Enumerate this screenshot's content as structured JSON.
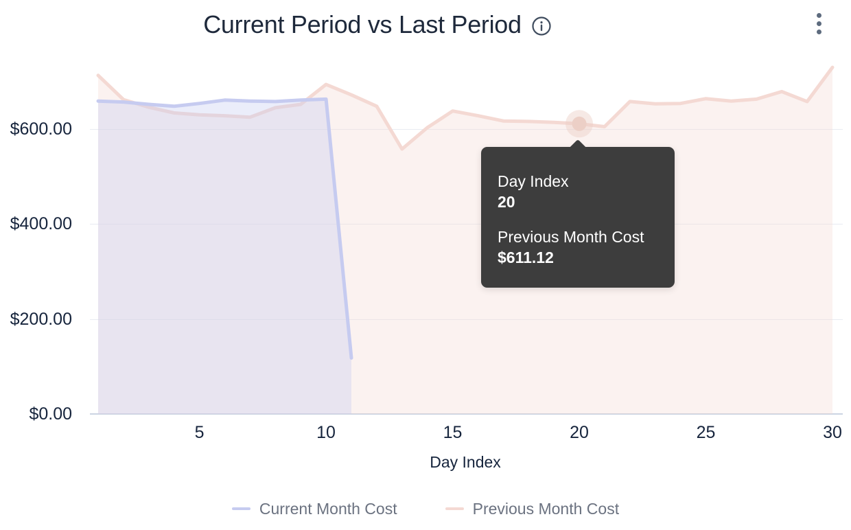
{
  "header": {
    "title": "Current Period vs Last Period",
    "info_icon": "info-circle",
    "menu_icon": "kebab-menu"
  },
  "chart_data": {
    "type": "area",
    "title": "Current Period vs Last Period",
    "xlabel": "Day Index",
    "ylabel": "",
    "x": [
      1,
      2,
      3,
      4,
      5,
      6,
      7,
      8,
      9,
      10,
      11,
      12,
      13,
      14,
      15,
      16,
      17,
      18,
      19,
      20,
      21,
      22,
      23,
      24,
      25,
      26,
      27,
      28,
      29,
      30
    ],
    "series": [
      {
        "name": "Current Month Cost",
        "color": "#c6cbf0",
        "values": [
          659,
          657,
          652,
          648,
          654,
          661,
          659,
          658,
          661,
          663,
          118
        ]
      },
      {
        "name": "Previous Month Cost",
        "color": "#f4d9d3",
        "values": [
          713,
          662,
          646,
          634,
          630,
          628,
          625,
          645,
          652,
          694,
          672,
          648,
          558,
          603,
          638,
          628,
          617,
          616,
          614,
          611.12,
          605,
          658,
          653,
          654,
          664,
          659,
          663,
          679,
          658,
          730
        ]
      }
    ],
    "ylim": [
      0,
      750
    ],
    "yticks": [
      {
        "label": "$0.00",
        "value": 0
      },
      {
        "label": "$200.00",
        "value": 200
      },
      {
        "label": "$400.00",
        "value": 400
      },
      {
        "label": "$600.00",
        "value": 600
      }
    ],
    "xticks": [
      5,
      10,
      15,
      20,
      25,
      30
    ],
    "grid": true,
    "legend_position": "bottom"
  },
  "tooltip": {
    "x_label": "Day Index",
    "x_value": "20",
    "series_label": "Previous Month Cost",
    "series_value": "$611.12"
  },
  "highlight": {
    "series": "Previous Month Cost",
    "day": 20,
    "value": 611.12,
    "dot_color": "#eccfc6"
  }
}
